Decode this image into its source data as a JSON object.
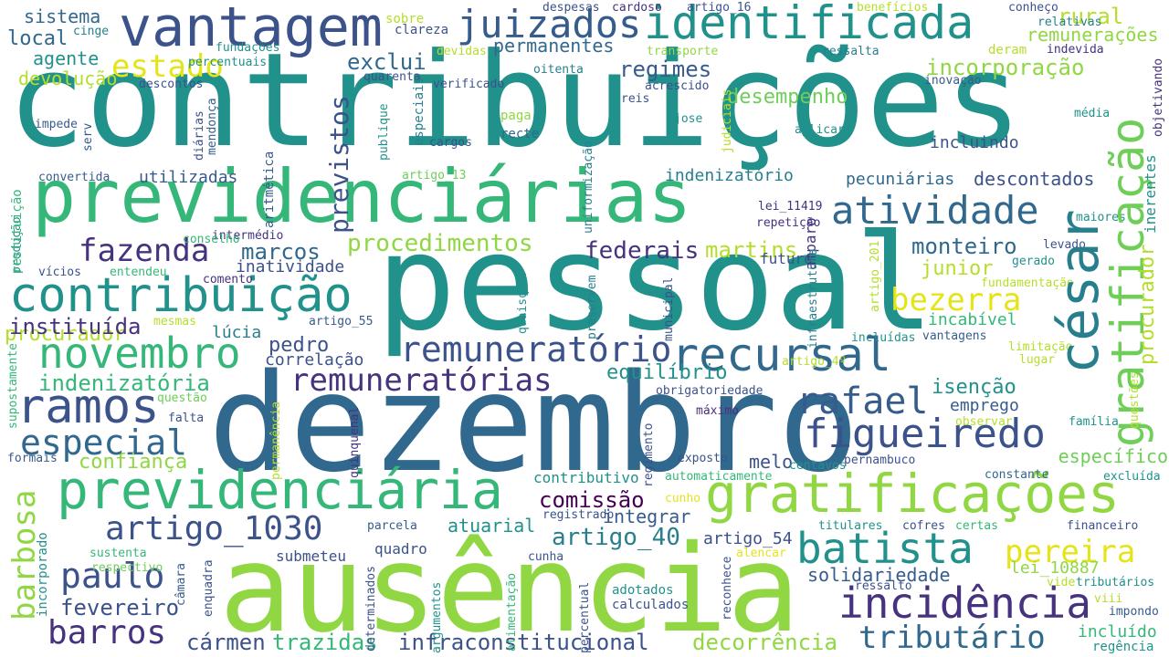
{
  "palette": {
    "dark_purple": "#46327e",
    "indigo": "#3b528b",
    "steel_blue": "#365c8d",
    "blue": "#31688e",
    "teal_blue": "#277f8e",
    "teal": "#21918c",
    "sea_green": "#1fa187",
    "green": "#35b779",
    "lime": "#6ece58",
    "yellow_green": "#90d743",
    "lime_yellow": "#b5de2b",
    "yellow": "#e5e419",
    "deep_purple": "#440154"
  },
  "words": [
    {
      "text": "contribuições",
      "color": "#21918c"
    },
    {
      "text": "pessoal",
      "color": "#21918c"
    },
    {
      "text": "dezembro",
      "color": "#31688e"
    },
    {
      "text": "ausência",
      "color": "#90d743"
    },
    {
      "text": "previdenciárias",
      "color": "#35b779"
    },
    {
      "text": "vantagem",
      "color": "#3b528b"
    },
    {
      "text": "identificada",
      "color": "#21918c"
    },
    {
      "text": "gratificação",
      "color": "#6ece58"
    },
    {
      "text": "césar",
      "color": "#277f8e"
    },
    {
      "text": "previdenciária",
      "color": "#35b779"
    },
    {
      "text": "gratificações",
      "color": "#90d743"
    },
    {
      "text": "recursal",
      "color": "#31688e"
    },
    {
      "text": "contribuição",
      "color": "#21918c"
    },
    {
      "text": "remuneratório",
      "color": "#3b528b"
    },
    {
      "text": "juizados",
      "color": "#365c8d"
    },
    {
      "text": "ramos",
      "color": "#3b528b"
    },
    {
      "text": "novembro",
      "color": "#35b779"
    },
    {
      "text": "incidência",
      "color": "#46327e"
    },
    {
      "text": "batista",
      "color": "#21918c"
    },
    {
      "text": "figueiredo",
      "color": "#3b528b"
    },
    {
      "text": "rafael",
      "color": "#365c8d"
    },
    {
      "text": "atividade",
      "color": "#31688e"
    },
    {
      "text": "artigo_1030",
      "color": "#3b528b"
    },
    {
      "text": "barros",
      "color": "#46327e"
    },
    {
      "text": "tributário",
      "color": "#31688e"
    },
    {
      "text": "especial",
      "color": "#31688e"
    },
    {
      "text": "remuneratórias",
      "color": "#46327e"
    },
    {
      "text": "paulo",
      "color": "#3b528b"
    },
    {
      "text": "bezerra",
      "color": "#e5e419"
    },
    {
      "text": "fazenda",
      "color": "#46327e"
    },
    {
      "text": "estado",
      "color": "#e5e419"
    },
    {
      "text": "pereira",
      "color": "#e5e419"
    },
    {
      "text": "procedimentos",
      "color": "#90d743"
    },
    {
      "text": "barbosa",
      "color": "#90d743"
    },
    {
      "text": "previstos",
      "color": "#3b528b"
    },
    {
      "text": "procurador",
      "color": "#b5de2b"
    },
    {
      "text": "indenizatória",
      "color": "#35b779"
    },
    {
      "text": "instituída",
      "color": "#46327e"
    },
    {
      "text": "comissão",
      "color": "#440154"
    },
    {
      "text": "artigo_40",
      "color": "#277f8e"
    },
    {
      "text": "fevereiro",
      "color": "#3b528b"
    },
    {
      "text": "infraconstitucional",
      "color": "#3b528b"
    },
    {
      "text": "cármen",
      "color": "#3b528b"
    },
    {
      "text": "trazidas",
      "color": "#35b779"
    },
    {
      "text": "decorrência",
      "color": "#90d743"
    },
    {
      "text": "solidariedade",
      "color": "#365c8d"
    },
    {
      "text": "confiança",
      "color": "#90d743"
    },
    {
      "text": "monteiro",
      "color": "#31688e"
    },
    {
      "text": "marcos",
      "color": "#31688e"
    },
    {
      "text": "federais",
      "color": "#46327e"
    },
    {
      "text": "martins",
      "color": "#b5de2b"
    },
    {
      "text": "desempenho",
      "color": "#6ece58"
    },
    {
      "text": "regimes",
      "color": "#365c8d"
    },
    {
      "text": "incorporação",
      "color": "#90d743"
    },
    {
      "text": "rural",
      "color": "#b5de2b"
    },
    {
      "text": "remunerações",
      "color": "#90d743"
    },
    {
      "text": "exclui",
      "color": "#31688e"
    },
    {
      "text": "permanentes",
      "color": "#31688e"
    },
    {
      "text": "sistema",
      "color": "#31688e"
    },
    {
      "text": "local",
      "color": "#31688e"
    },
    {
      "text": "agente",
      "color": "#21918c"
    },
    {
      "text": "devolução",
      "color": "#b5de2b"
    },
    {
      "text": "pedro",
      "color": "#3b528b"
    },
    {
      "text": "lúcia",
      "color": "#277f8e"
    },
    {
      "text": "correlação",
      "color": "#3b528b"
    },
    {
      "text": "equilíbrio",
      "color": "#21918c"
    },
    {
      "text": "isenção",
      "color": "#21918c"
    },
    {
      "text": "emprego",
      "color": "#365c8d"
    },
    {
      "text": "junior",
      "color": "#b5de2b"
    },
    {
      "text": "incabível",
      "color": "#35b779"
    },
    {
      "text": "atuarial",
      "color": "#21918c"
    },
    {
      "text": "integrar",
      "color": "#365c8d"
    },
    {
      "text": "artigo_54",
      "color": "#3b528b"
    },
    {
      "text": "melo",
      "color": "#3b528b"
    },
    {
      "text": "específico",
      "color": "#6ece58"
    },
    {
      "text": "incluído",
      "color": "#35b779"
    },
    {
      "text": "regência",
      "color": "#21918c"
    },
    {
      "text": "incluindo",
      "color": "#3b528b"
    },
    {
      "text": "descontados",
      "color": "#3b528b"
    },
    {
      "text": "pecuniárias",
      "color": "#31688e"
    },
    {
      "text": "indenizatório",
      "color": "#277f8e"
    },
    {
      "text": "utilizadas",
      "color": "#365c8d"
    },
    {
      "text": "inatividade",
      "color": "#3b528b"
    },
    {
      "text": "contributivo",
      "color": "#21918c"
    },
    {
      "text": "lei_10887",
      "color": "#90d743"
    },
    {
      "text": "quadro",
      "color": "#3b528b"
    },
    {
      "text": "submeteu",
      "color": "#3b528b"
    },
    {
      "text": "adotados",
      "color": "#21918c"
    },
    {
      "text": "calculados",
      "color": "#3b528b"
    },
    {
      "text": "futuro",
      "color": "#3b528b"
    },
    {
      "text": "amparo",
      "color": "#46327e"
    },
    {
      "text": "inerentes",
      "color": "#21918c"
    },
    {
      "text": "objetivando",
      "color": "#46327e"
    },
    {
      "text": "artigo_16",
      "color": "#3b528b"
    },
    {
      "text": "despesas",
      "color": "#3b528b"
    },
    {
      "text": "cardoso",
      "color": "#46327e"
    },
    {
      "text": "benefícios",
      "color": "#b5de2b"
    },
    {
      "text": "conheço",
      "color": "#3b528b"
    },
    {
      "text": "relativas",
      "color": "#277f8e"
    },
    {
      "text": "indevida",
      "color": "#46327e"
    },
    {
      "text": "sobre",
      "color": "#b5de2b"
    },
    {
      "text": "clareza",
      "color": "#3b528b"
    },
    {
      "text": "cinge",
      "color": "#277f8e"
    },
    {
      "text": "fundações",
      "color": "#21918c"
    },
    {
      "text": "percentuais",
      "color": "#21918c"
    },
    {
      "text": "devidas",
      "color": "#b5de2b"
    },
    {
      "text": "transporte",
      "color": "#90d743"
    },
    {
      "text": "ressalta",
      "color": "#277f8e"
    },
    {
      "text": "deram",
      "color": "#b5de2b"
    },
    {
      "text": "inovação",
      "color": "#365c8d"
    },
    {
      "text": "quarenta",
      "color": "#3b528b"
    },
    {
      "text": "oitenta",
      "color": "#277f8e"
    },
    {
      "text": "verificado",
      "color": "#3b528b"
    },
    {
      "text": "acrescido",
      "color": "#3b528b"
    },
    {
      "text": "descontos",
      "color": "#3b528b"
    },
    {
      "text": "reis",
      "color": "#3b528b"
    },
    {
      "text": "jose",
      "color": "#21918c"
    },
    {
      "text": "paga",
      "color": "#90d743"
    },
    {
      "text": "cargos",
      "color": "#3b528b"
    },
    {
      "text": "recte",
      "color": "#31688e"
    },
    {
      "text": "aplicar",
      "color": "#21918c"
    },
    {
      "text": "média",
      "color": "#21918c"
    },
    {
      "text": "impede",
      "color": "#365c8d"
    },
    {
      "text": "serv",
      "color": "#365c8d"
    },
    {
      "text": "convertida",
      "color": "#365c8d"
    },
    {
      "text": "artigo_13",
      "color": "#6ece58"
    },
    {
      "text": "lei_11419",
      "color": "#46327e"
    },
    {
      "text": "repetição",
      "color": "#46327e"
    },
    {
      "text": "maiores",
      "color": "#21918c"
    },
    {
      "text": "levado",
      "color": "#3b528b"
    },
    {
      "text": "gerado",
      "color": "#21918c"
    },
    {
      "text": "fundamentação",
      "color": "#b5de2b"
    },
    {
      "text": "intermédio",
      "color": "#46327e"
    },
    {
      "text": "conselho",
      "color": "#35b779"
    },
    {
      "text": "produção",
      "color": "#21918c"
    },
    {
      "text": "vícios",
      "color": "#3b528b"
    },
    {
      "text": "entendeu",
      "color": "#35b779"
    },
    {
      "text": "comento",
      "color": "#46327e"
    },
    {
      "text": "mesmas",
      "color": "#b5de2b"
    },
    {
      "text": "artigo_55",
      "color": "#365c8d"
    },
    {
      "text": "incluídas",
      "color": "#21918c"
    },
    {
      "text": "vantagens",
      "color": "#365c8d"
    },
    {
      "text": "limitação",
      "color": "#b5de2b"
    },
    {
      "text": "lugar",
      "color": "#b5de2b"
    },
    {
      "text": "artigo_4º",
      "color": "#b5de2b"
    },
    {
      "text": "obrigatoriedade",
      "color": "#3b528b"
    },
    {
      "text": "questão",
      "color": "#6ece58"
    },
    {
      "text": "falta",
      "color": "#3b528b"
    },
    {
      "text": "máximo",
      "color": "#46327e"
    },
    {
      "text": "observar",
      "color": "#b5de2b"
    },
    {
      "text": "família",
      "color": "#21918c"
    },
    {
      "text": "formais",
      "color": "#365c8d"
    },
    {
      "text": "exposto",
      "color": "#3b528b"
    },
    {
      "text": "centavos",
      "color": "#21918c"
    },
    {
      "text": "pernambuco",
      "color": "#3b528b"
    },
    {
      "text": "constante",
      "color": "#31688e"
    },
    {
      "text": "excluída",
      "color": "#21918c"
    },
    {
      "text": "automaticamente",
      "color": "#35b779"
    },
    {
      "text": "cunho",
      "color": "#e5e419"
    },
    {
      "text": "registrado",
      "color": "#3b528b"
    },
    {
      "text": "parcela",
      "color": "#365c8d"
    },
    {
      "text": "cunha",
      "color": "#3b528b"
    },
    {
      "text": "sustenta",
      "color": "#35b779"
    },
    {
      "text": "respectivo",
      "color": "#6ece58"
    },
    {
      "text": "certas",
      "color": "#35b779"
    },
    {
      "text": "financeiro",
      "color": "#3b528b"
    },
    {
      "text": "titulares",
      "color": "#21918c"
    },
    {
      "text": "cofres",
      "color": "#3b528b"
    },
    {
      "text": "alencar",
      "color": "#e5e419"
    },
    {
      "text": "ressalto",
      "color": "#3b528b"
    },
    {
      "text": "vide",
      "color": "#b5de2b"
    },
    {
      "text": "tributários",
      "color": "#21918c"
    },
    {
      "text": "viii",
      "color": "#b5de2b"
    },
    {
      "text": "impondo",
      "color": "#365c8d"
    },
    {
      "text": "restituição",
      "color": "#35b779"
    },
    {
      "text": "aritmética",
      "color": "#365c8d"
    },
    {
      "text": "diárias",
      "color": "#3b528b"
    },
    {
      "text": "mendonça",
      "color": "#365c8d"
    },
    {
      "text": "publique",
      "color": "#21918c"
    },
    {
      "text": "especiais",
      "color": "#277f8e"
    },
    {
      "text": "uniformização",
      "color": "#277f8e"
    },
    {
      "text": "judiciais",
      "color": "#b5de2b"
    },
    {
      "text": "infraestrutura",
      "color": "#277f8e"
    },
    {
      "text": "artigo_201",
      "color": "#b5de2b"
    },
    {
      "text": "municipal",
      "color": "#3b528b"
    },
    {
      "text": "preservem",
      "color": "#277f8e"
    },
    {
      "text": "quaisquer",
      "color": "#21918c"
    },
    {
      "text": "supostamente",
      "color": "#35b779"
    },
    {
      "text": "questões",
      "color": "#b5de2b"
    },
    {
      "text": "permanência",
      "color": "#b5de2b"
    },
    {
      "text": "quinquenal",
      "color": "#46327e"
    },
    {
      "text": "regimento",
      "color": "#3b528b"
    },
    {
      "text": "incorporado",
      "color": "#21918c"
    },
    {
      "text": "enquadra",
      "color": "#3b528b"
    },
    {
      "text": "câmara",
      "color": "#365c8d"
    },
    {
      "text": "determinados",
      "color": "#3b528b"
    },
    {
      "text": "argumentos",
      "color": "#21918c"
    },
    {
      "text": "alimentação",
      "color": "#35b779"
    },
    {
      "text": "percentual",
      "color": "#3b528b"
    },
    {
      "text": "reconhece",
      "color": "#3b528b"
    }
  ]
}
